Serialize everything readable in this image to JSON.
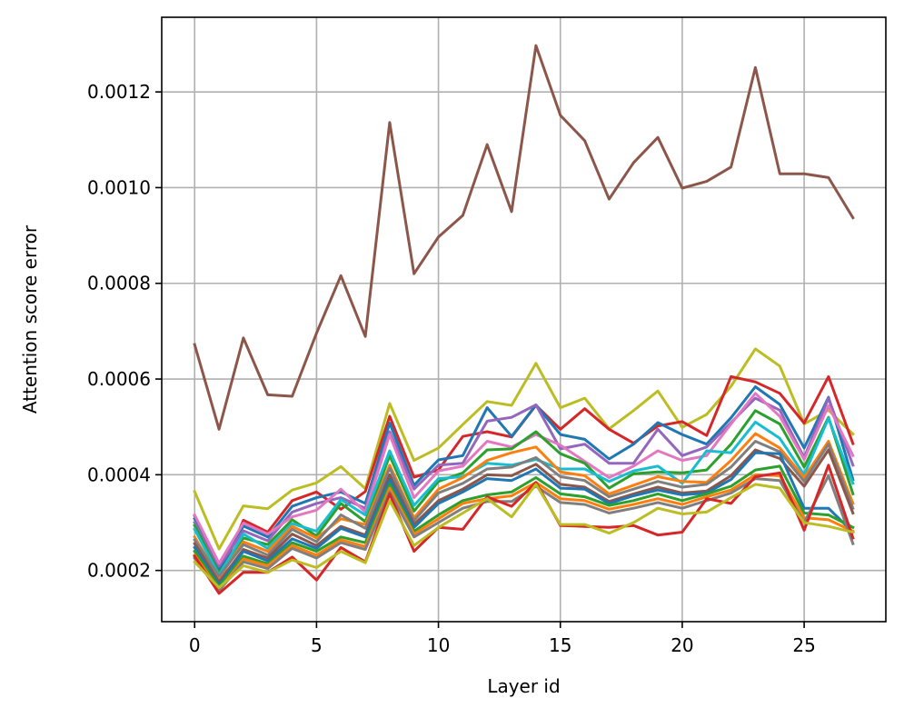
{
  "chart_data": {
    "type": "line",
    "title": "",
    "xlabel": "Layer id",
    "ylabel": "Attention score error",
    "xlim": [
      -1.35,
      28.35
    ],
    "ylim": [
      9.3e-05,
      0.001356
    ],
    "xticks": [
      0,
      5,
      10,
      15,
      20,
      25
    ],
    "xtick_labels": [
      "0",
      "5",
      "10",
      "15",
      "20",
      "25"
    ],
    "yticks": [
      0.0002,
      0.0004,
      0.0006,
      0.0008,
      0.001,
      0.0012
    ],
    "ytick_labels": [
      "0.0002",
      "0.0004",
      "0.0006",
      "0.0008",
      "0.0010",
      "0.0012"
    ],
    "grid": true,
    "x": [
      0,
      1,
      2,
      3,
      4,
      5,
      6,
      7,
      8,
      9,
      10,
      11,
      12,
      13,
      14,
      15,
      16,
      17,
      18,
      19,
      20,
      21,
      22,
      23,
      24,
      25,
      26,
      27
    ],
    "series": [
      {
        "name": "brown-top",
        "color": "#8c564b",
        "values": [
          0.000672,
          0.000495,
          0.000686,
          0.000567,
          0.000564,
          0.000696,
          0.000816,
          0.000689,
          0.001136,
          0.00082,
          0.000897,
          0.000942,
          0.00109,
          0.00095,
          0.001297,
          0.001151,
          0.001098,
          0.000976,
          0.001052,
          0.001105,
          0.000999,
          0.001013,
          0.001043,
          0.001251,
          0.001029,
          0.001029,
          0.001021,
          0.000937
        ]
      },
      {
        "name": "olive-high",
        "color": "#bcbd22",
        "values": [
          0.000365,
          0.000245,
          0.000335,
          0.000329,
          0.000368,
          0.000383,
          0.000417,
          0.000371,
          0.000549,
          0.00043,
          0.000456,
          0.000505,
          0.000553,
          0.000545,
          0.000633,
          0.00054,
          0.00056,
          0.000496,
          0.000534,
          0.000575,
          0.000499,
          0.000526,
          0.000585,
          0.000663,
          0.000627,
          0.000506,
          0.000535,
          0.000485
        ]
      },
      {
        "name": "red-a",
        "color": "#d62728",
        "values": [
          0.000314,
          0.000184,
          0.000305,
          0.00028,
          0.000346,
          0.000364,
          0.000328,
          0.000365,
          0.000522,
          0.000395,
          0.00041,
          0.00048,
          0.00049,
          0.000479,
          0.000545,
          0.000495,
          0.000538,
          0.000495,
          0.000466,
          0.000502,
          0.000511,
          0.000482,
          0.000605,
          0.000594,
          0.00057,
          0.000508,
          0.000605,
          0.000465
        ]
      },
      {
        "name": "blue-a",
        "color": "#1f77b4",
        "values": [
          0.000308,
          0.0002,
          0.000293,
          0.00027,
          0.000334,
          0.000352,
          0.000364,
          0.00034,
          0.000508,
          0.000378,
          0.000431,
          0.00044,
          0.00054,
          0.00048,
          0.000546,
          0.000484,
          0.000474,
          0.000433,
          0.000464,
          0.000509,
          0.000484,
          0.000464,
          0.000519,
          0.000584,
          0.000547,
          0.000456,
          0.000562,
          0.00039
        ]
      },
      {
        "name": "purple-a",
        "color": "#9467bd",
        "values": [
          0.0003,
          0.000209,
          0.000283,
          0.000262,
          0.000322,
          0.00034,
          0.000352,
          0.00033,
          0.00049,
          0.00037,
          0.00042,
          0.000424,
          0.000512,
          0.00052,
          0.000546,
          0.000454,
          0.000464,
          0.000424,
          0.000424,
          0.000495,
          0.00044,
          0.000458,
          0.000509,
          0.00056,
          0.000535,
          0.000436,
          0.00056,
          0.00042
        ]
      },
      {
        "name": "pink-a",
        "color": "#e377c2",
        "values": [
          0.000316,
          0.000215,
          0.000299,
          0.000276,
          0.000312,
          0.000326,
          0.00037,
          0.000322,
          0.000484,
          0.000352,
          0.000408,
          0.000418,
          0.00047,
          0.000458,
          0.000484,
          0.000462,
          0.000428,
          0.000394,
          0.000418,
          0.00045,
          0.00043,
          0.00044,
          0.000506,
          0.00057,
          0.000522,
          0.000432,
          0.000544,
          0.00044
        ]
      },
      {
        "name": "green-a",
        "color": "#2ca02c",
        "values": [
          0.000294,
          0.000194,
          0.000268,
          0.000254,
          0.000306,
          0.000272,
          0.00034,
          0.000302,
          0.00044,
          0.000324,
          0.000386,
          0.000404,
          0.000452,
          0.000454,
          0.00049,
          0.000444,
          0.000424,
          0.000372,
          0.000402,
          0.000406,
          0.000404,
          0.00041,
          0.000464,
          0.000534,
          0.000506,
          0.000416,
          0.00052,
          0.00036
        ]
      },
      {
        "name": "cyan-a",
        "color": "#17becf",
        "values": [
          0.000286,
          0.00019,
          0.000276,
          0.000246,
          0.000298,
          0.000282,
          0.000348,
          0.000316,
          0.00045,
          0.000336,
          0.000392,
          0.000396,
          0.000424,
          0.00042,
          0.000432,
          0.000412,
          0.000412,
          0.000386,
          0.000408,
          0.000418,
          0.000382,
          0.00045,
          0.000446,
          0.00051,
          0.000476,
          0.0004,
          0.000518,
          0.000382
        ]
      },
      {
        "name": "orange-a",
        "color": "#ff7f0e",
        "values": [
          0.00027,
          0.000184,
          0.00026,
          0.00024,
          0.000292,
          0.000268,
          0.000308,
          0.000296,
          0.00042,
          0.00031,
          0.00037,
          0.000394,
          0.00043,
          0.000446,
          0.000458,
          0.000406,
          0.000398,
          0.00036,
          0.000378,
          0.000396,
          0.000386,
          0.000384,
          0.00043,
          0.000486,
          0.000456,
          0.000394,
          0.00047,
          0.00034
        ]
      },
      {
        "name": "gray-a",
        "color": "#7f7f7f",
        "values": [
          0.000264,
          0.000188,
          0.000254,
          0.000232,
          0.000286,
          0.00026,
          0.000316,
          0.000288,
          0.000414,
          0.000304,
          0.000362,
          0.000382,
          0.000412,
          0.000416,
          0.000436,
          0.000396,
          0.000388,
          0.000354,
          0.00037,
          0.000386,
          0.000374,
          0.00038,
          0.000416,
          0.00047,
          0.000448,
          0.000386,
          0.000464,
          0.00033
        ]
      },
      {
        "name": "brown-low",
        "color": "#8c564b",
        "values": [
          0.000256,
          0.000176,
          0.000244,
          0.000226,
          0.000276,
          0.000252,
          0.000292,
          0.000274,
          0.0004,
          0.000296,
          0.000346,
          0.00037,
          0.0004,
          0.000398,
          0.000422,
          0.00038,
          0.000374,
          0.000344,
          0.00036,
          0.000374,
          0.000362,
          0.000366,
          0.000398,
          0.000452,
          0.000434,
          0.000376,
          0.000452,
          0.00032
        ]
      },
      {
        "name": "blue-b",
        "color": "#1f77b4",
        "values": [
          0.000248,
          0.00017,
          0.00024,
          0.00022,
          0.000266,
          0.000246,
          0.000288,
          0.00027,
          0.00039,
          0.00029,
          0.00034,
          0.000364,
          0.000392,
          0.000388,
          0.000412,
          0.000372,
          0.00037,
          0.00034,
          0.000356,
          0.000368,
          0.000358,
          0.000362,
          0.00039,
          0.000446,
          0.000444,
          0.00033,
          0.00033,
          0.00028
        ]
      },
      {
        "name": "green-b",
        "color": "#2ca02c",
        "values": [
          0.00024,
          0.000166,
          0.00023,
          0.000214,
          0.000258,
          0.00024,
          0.00027,
          0.000258,
          0.00038,
          0.000282,
          0.000316,
          0.000346,
          0.000358,
          0.000364,
          0.000394,
          0.00036,
          0.000354,
          0.000336,
          0.000346,
          0.00036,
          0.000346,
          0.00036,
          0.000376,
          0.00041,
          0.000418,
          0.00032,
          0.000316,
          0.00029
        ]
      },
      {
        "name": "orange-b",
        "color": "#ff7f0e",
        "values": [
          0.000232,
          0.00016,
          0.000224,
          0.00021,
          0.000252,
          0.000232,
          0.000264,
          0.00025,
          0.000372,
          0.000276,
          0.000308,
          0.00034,
          0.00035,
          0.000356,
          0.000384,
          0.00035,
          0.000346,
          0.000328,
          0.000338,
          0.00035,
          0.000338,
          0.000354,
          0.000368,
          0.0004,
          0.000398,
          0.00031,
          0.000306,
          0.000282
        ]
      },
      {
        "name": "gray-b",
        "color": "#7f7f7f",
        "values": [
          0.000226,
          0.000158,
          0.000218,
          0.000204,
          0.000246,
          0.000226,
          0.000258,
          0.000244,
          0.000364,
          0.00027,
          0.0003,
          0.00033,
          0.000344,
          0.000344,
          0.000376,
          0.000342,
          0.000338,
          0.00032,
          0.00033,
          0.000342,
          0.00033,
          0.000346,
          0.000362,
          0.000392,
          0.000388,
          0.0003,
          0.000398,
          0.000256
        ]
      },
      {
        "name": "red-b",
        "color": "#d62728",
        "values": [
          0.00023,
          0.000152,
          0.000196,
          0.000196,
          0.000228,
          0.00018,
          0.000248,
          0.000218,
          0.00036,
          0.00024,
          0.00029,
          0.000286,
          0.000354,
          0.000334,
          0.000384,
          0.000294,
          0.000292,
          0.00029,
          0.000294,
          0.000274,
          0.00028,
          0.00035,
          0.00034,
          0.000396,
          0.000404,
          0.000284,
          0.00042,
          0.000268
        ]
      },
      {
        "name": "olive-low",
        "color": "#bcbd22",
        "values": [
          0.000218,
          0.000164,
          0.00021,
          0.000196,
          0.000222,
          0.000206,
          0.00024,
          0.000216,
          0.000346,
          0.000252,
          0.00029,
          0.00032,
          0.00035,
          0.000312,
          0.00038,
          0.000296,
          0.000296,
          0.000278,
          0.0003,
          0.00033,
          0.000318,
          0.000322,
          0.000352,
          0.00038,
          0.000372,
          0.0003,
          0.000292,
          0.00028
        ]
      }
    ]
  }
}
